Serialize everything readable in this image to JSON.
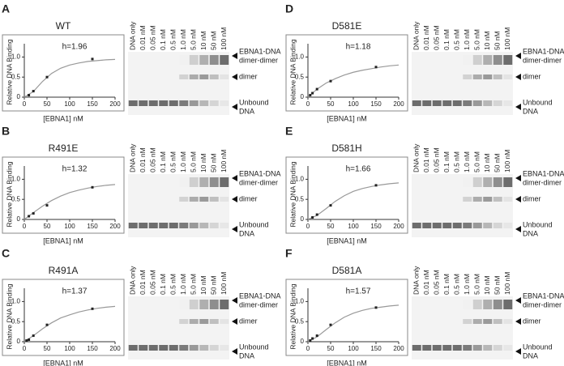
{
  "chart_data": [
    {
      "type": "scatter",
      "title": "WT",
      "annotation": "h=1.96",
      "xlabel": "[EBNA1] nM",
      "ylabel": "Relative DNA Binding",
      "xlim": [
        0,
        200
      ],
      "ylim": [
        0,
        1.25
      ],
      "xticks": [
        0,
        50,
        100,
        150,
        200
      ],
      "yticks": [
        0,
        0.5,
        {
          "value": 1,
          "label": "1.0"
        }
      ],
      "points": {
        "color": "#222222",
        "x": [
          10,
          20,
          50,
          150
        ],
        "values": [
          0.05,
          0.15,
          0.5,
          0.95
        ]
      },
      "fit": {
        "color": "#999999",
        "x": [
          0,
          20,
          40,
          60,
          80,
          100,
          120,
          140,
          160,
          180,
          200
        ],
        "values": [
          0,
          0.14,
          0.39,
          0.59,
          0.72,
          0.8,
          0.85,
          0.89,
          0.91,
          0.93,
          0.94
        ]
      }
    },
    {
      "type": "scatter",
      "title": "R491E",
      "annotation": "h=1.32",
      "xlabel": "[EBNA1] nM",
      "ylabel": "Relative DNA Binding",
      "xlim": [
        0,
        200
      ],
      "ylim": [
        0,
        1.25
      ],
      "xticks": [
        0,
        50,
        100,
        150,
        200
      ],
      "yticks": [
        0,
        0.5,
        {
          "value": 1,
          "label": "1.0"
        }
      ],
      "points": {
        "color": "#222222",
        "x": [
          10,
          20,
          50,
          150
        ],
        "values": [
          0.08,
          0.15,
          0.35,
          0.8
        ]
      },
      "fit": {
        "color": "#999999",
        "x": [
          0,
          20,
          40,
          60,
          80,
          100,
          120,
          140,
          160,
          180,
          200
        ],
        "values": [
          0,
          0.17,
          0.33,
          0.47,
          0.58,
          0.67,
          0.73,
          0.78,
          0.82,
          0.85,
          0.87
        ]
      }
    },
    {
      "type": "scatter",
      "title": "R491A",
      "annotation": "h=1.37",
      "xlabel": "[EBNA1] nM",
      "ylabel": "Relative DNA Binding",
      "xlim": [
        0,
        200
      ],
      "ylim": [
        0,
        1.25
      ],
      "xticks": [
        0,
        50,
        100,
        150,
        200
      ],
      "yticks": [
        0,
        0.5,
        {
          "value": 1,
          "label": "1.0"
        }
      ],
      "points": {
        "color": "#222222",
        "x": [
          5,
          10,
          20,
          50,
          150
        ],
        "values": [
          0.03,
          0.05,
          0.15,
          0.42,
          0.82
        ]
      },
      "fit": {
        "color": "#999999",
        "x": [
          0,
          20,
          40,
          60,
          80,
          100,
          120,
          140,
          160,
          180,
          200
        ],
        "values": [
          0,
          0.15,
          0.32,
          0.47,
          0.59,
          0.67,
          0.74,
          0.79,
          0.83,
          0.86,
          0.88
        ]
      }
    },
    {
      "type": "scatter",
      "title": "D581E",
      "annotation": "h=1.18",
      "xlabel": "[EBNA1] nM",
      "ylabel": "Relative DNA Binding",
      "xlim": [
        0,
        200
      ],
      "ylim": [
        0,
        1.25
      ],
      "xticks": [
        0,
        50,
        100,
        150,
        200
      ],
      "yticks": [
        0,
        0.5,
        {
          "value": 1,
          "label": "1.0"
        }
      ],
      "points": {
        "color": "#222222",
        "x": [
          5,
          10,
          20,
          50,
          150
        ],
        "values": [
          0.05,
          0.1,
          0.2,
          0.4,
          0.75
        ]
      },
      "fit": {
        "color": "#999999",
        "x": [
          0,
          20,
          40,
          60,
          80,
          100,
          120,
          140,
          160,
          180,
          200
        ],
        "values": [
          0,
          0.2,
          0.35,
          0.46,
          0.55,
          0.62,
          0.67,
          0.71,
          0.75,
          0.78,
          0.8
        ]
      }
    },
    {
      "type": "scatter",
      "title": "D581H",
      "annotation": "h=1.66",
      "xlabel": "[EBNA1] nM",
      "ylabel": "Relative DNA Binding",
      "xlim": [
        0,
        200
      ],
      "ylim": [
        0,
        1.25
      ],
      "xticks": [
        0,
        50,
        100,
        150,
        200
      ],
      "yticks": [
        0,
        0.5,
        {
          "value": 1,
          "label": "1.0"
        }
      ],
      "points": {
        "color": "#222222",
        "x": [
          10,
          20,
          50,
          150
        ],
        "values": [
          0.05,
          0.12,
          0.35,
          0.85
        ]
      },
      "fit": {
        "color": "#999999",
        "x": [
          0,
          20,
          40,
          60,
          80,
          100,
          120,
          140,
          160,
          180,
          200
        ],
        "values": [
          0,
          0.1,
          0.27,
          0.45,
          0.59,
          0.7,
          0.77,
          0.82,
          0.86,
          0.89,
          0.91
        ]
      }
    },
    {
      "type": "scatter",
      "title": "D581A",
      "annotation": "h=1.57",
      "xlabel": "[EBNA1] nM",
      "ylabel": "Relative DNA Binding",
      "xlim": [
        0,
        200
      ],
      "ylim": [
        0,
        1.25
      ],
      "xticks": [
        0,
        50,
        100,
        150,
        200
      ],
      "yticks": [
        0,
        0.5,
        {
          "value": 1,
          "label": "1.0"
        }
      ],
      "points": {
        "color": "#222222",
        "x": [
          5,
          10,
          20,
          50,
          150
        ],
        "values": [
          0.03,
          0.08,
          0.15,
          0.42,
          0.85
        ]
      },
      "fit": {
        "color": "#999999",
        "x": [
          0,
          20,
          40,
          60,
          80,
          100,
          120,
          140,
          160,
          180,
          200
        ],
        "values": [
          0,
          0.12,
          0.3,
          0.47,
          0.61,
          0.71,
          0.78,
          0.83,
          0.86,
          0.89,
          0.91
        ]
      }
    }
  ],
  "panels": [
    {
      "letter": "A",
      "lanes": [
        "DNA only",
        "0.01 nM",
        "0.05 nM",
        "0.1 nM",
        "0.5 nM",
        "1.0 nM",
        "5.0 nM",
        "10 nM",
        "50 nM",
        "100 nM"
      ],
      "bands": [
        [
          "EBNA1-DNA",
          "dimer-dimer"
        ],
        [
          "dimer"
        ],
        [
          "Unbound",
          "DNA"
        ]
      ]
    },
    {
      "letter": "B",
      "lanes": [
        "DNA only",
        "0.01 nM",
        "0.05 nM",
        "0.1 nM",
        "0.5 nM",
        "1.0 nM",
        "5.0 nM",
        "10 nM",
        "50 nM",
        "100 nM"
      ],
      "bands": [
        [
          "EBNA1-DNA",
          "dimer-dimer"
        ],
        [
          "dimer"
        ],
        [
          "Unbound",
          "DNA"
        ]
      ]
    },
    {
      "letter": "C",
      "lanes": [
        "DNA only",
        "0.01 nM",
        "0.05 nM",
        "0.1 nM",
        "0.5 nM",
        "1.0 nM",
        "5.0 nM",
        "10 nM",
        "50 nM",
        "100 nM"
      ],
      "bands": [
        [
          "EBNA1-DNA",
          "dimer-dimer"
        ],
        [
          "dimer"
        ],
        [
          "Unbound",
          "DNA"
        ]
      ]
    },
    {
      "letter": "D",
      "lanes": [
        "DNA only",
        "0.01 nM",
        "0.05 nM",
        "0.1 nM",
        "0.5 nM",
        "1.0 nM",
        "5.0 nM",
        "10 nM",
        "50 nM",
        "100 nM"
      ],
      "bands": [
        [
          "EBNA1-DNA",
          "dimer-dimer"
        ],
        [
          "dimer"
        ],
        [
          "Unbound",
          "DNA"
        ]
      ]
    },
    {
      "letter": "E",
      "lanes": [
        "DNA only",
        "0.01 nM",
        "0.05 nM",
        "0.1 nM",
        "0.5 nM",
        "1.0 nM",
        "5.0 nM",
        "10 nM",
        "50 nM",
        "100 nM"
      ],
      "bands": [
        [
          "EBNA1-DNA",
          "dimer-dimer"
        ],
        [
          "dimer"
        ],
        [
          "Unbound",
          "DNA"
        ]
      ]
    },
    {
      "letter": "F",
      "lanes": [
        "DNA only",
        "0.01 nM",
        "0.05 nM",
        "0.1 nM",
        "0.5 nM",
        "1.0 nM",
        "5.0 nM",
        "10 nM",
        "50 nM",
        "100 nM"
      ],
      "bands": [
        [
          "EBNA1-DNA",
          "dimer-dimer"
        ],
        [
          "dimer"
        ],
        [
          "Unbound",
          "DNA"
        ]
      ]
    }
  ]
}
